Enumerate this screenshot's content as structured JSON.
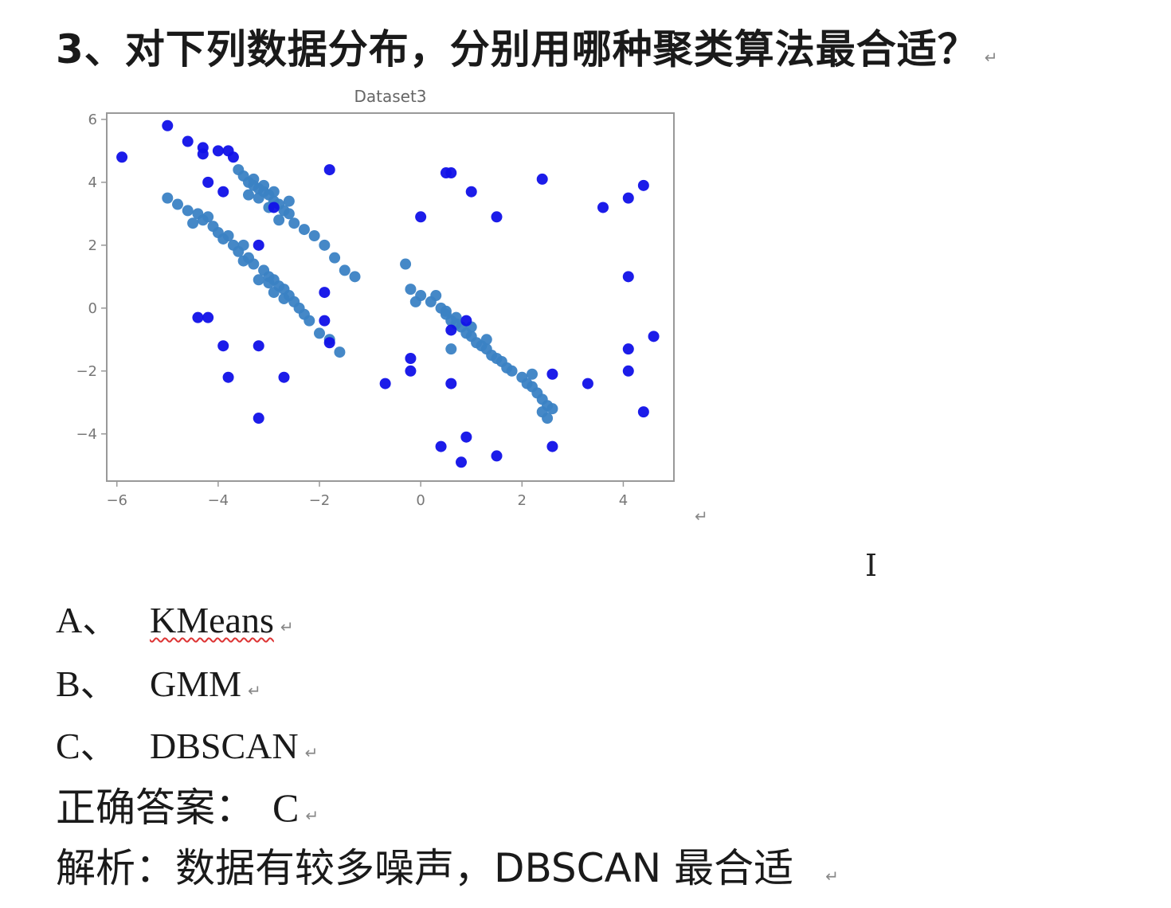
{
  "question": {
    "text": "3、对下列数据分布，分别用哪种聚类算法最合适？"
  },
  "paragraph_mark": "↵",
  "options": [
    {
      "label": "A、",
      "value": "KMeans"
    },
    {
      "label": "B、",
      "value": "GMM"
    },
    {
      "label": "C、",
      "value": "DBSCAN"
    }
  ],
  "answer": {
    "label": "正确答案：",
    "value": "C"
  },
  "explanation": {
    "label": "解析：",
    "text": "数据有较多噪声，DBSCAN 最合适"
  },
  "colors": {
    "core": "#3b82c4",
    "noise": "#1010e8",
    "axes": "#999999",
    "text": "#1a1a1a"
  },
  "chart_data": {
    "type": "scatter",
    "title": "Dataset3",
    "xlim": [
      -6.2,
      5.0
    ],
    "ylim": [
      -5.5,
      6.2
    ],
    "xticks": [
      -6,
      -4,
      -2,
      0,
      2,
      4
    ],
    "yticks": [
      6,
      4,
      2,
      0,
      -2,
      -4
    ],
    "grid": false,
    "series": [
      {
        "points": [
          [
            -3.6,
            4.4
          ],
          [
            -3.5,
            4.2
          ],
          [
            -3.4,
            4.0
          ],
          [
            -3.3,
            3.9
          ],
          [
            -3.2,
            3.8
          ],
          [
            -3.1,
            3.7
          ],
          [
            -3.0,
            3.6
          ],
          [
            -3.2,
            3.5
          ],
          [
            -2.9,
            3.4
          ],
          [
            -2.8,
            3.3
          ],
          [
            -3.0,
            3.2
          ],
          [
            -2.7,
            3.1
          ],
          [
            -2.6,
            3.0
          ],
          [
            -2.8,
            2.8
          ],
          [
            -2.5,
            2.7
          ],
          [
            -2.3,
            2.5
          ],
          [
            -2.1,
            2.3
          ],
          [
            -1.9,
            2.0
          ],
          [
            -1.7,
            1.6
          ],
          [
            -1.5,
            1.2
          ],
          [
            -1.3,
            1.0
          ],
          [
            -3.4,
            3.6
          ],
          [
            -3.1,
            3.9
          ],
          [
            -2.9,
            3.7
          ],
          [
            -2.6,
            3.4
          ],
          [
            -3.3,
            4.1
          ],
          [
            -5.0,
            3.5
          ],
          [
            -4.8,
            3.3
          ],
          [
            -4.6,
            3.1
          ],
          [
            -4.4,
            3.0
          ],
          [
            -4.3,
            2.8
          ],
          [
            -4.1,
            2.6
          ],
          [
            -4.0,
            2.4
          ],
          [
            -3.9,
            2.2
          ],
          [
            -3.7,
            2.0
          ],
          [
            -3.6,
            1.8
          ],
          [
            -3.4,
            1.6
          ],
          [
            -3.3,
            1.4
          ],
          [
            -3.1,
            1.2
          ],
          [
            -3.0,
            1.0
          ],
          [
            -2.9,
            0.9
          ],
          [
            -2.8,
            0.7
          ],
          [
            -2.7,
            0.6
          ],
          [
            -2.6,
            0.4
          ],
          [
            -2.5,
            0.2
          ],
          [
            -2.4,
            0.0
          ],
          [
            -2.3,
            -0.2
          ],
          [
            -2.2,
            -0.4
          ],
          [
            -2.0,
            -0.8
          ],
          [
            -1.8,
            -1.0
          ],
          [
            -1.6,
            -1.4
          ],
          [
            -4.2,
            2.9
          ],
          [
            -3.8,
            2.3
          ],
          [
            -3.5,
            1.5
          ],
          [
            -3.2,
            0.9
          ],
          [
            -2.9,
            0.5
          ],
          [
            -3.0,
            0.8
          ],
          [
            -2.7,
            0.3
          ],
          [
            -4.5,
            2.7
          ],
          [
            -3.5,
            2.0
          ],
          [
            -0.3,
            1.4
          ],
          [
            -0.2,
            0.6
          ],
          [
            0.0,
            0.4
          ],
          [
            0.2,
            0.2
          ],
          [
            0.3,
            0.4
          ],
          [
            0.4,
            0.0
          ],
          [
            0.5,
            -0.2
          ],
          [
            0.6,
            -0.4
          ],
          [
            0.7,
            -0.5
          ],
          [
            0.8,
            -0.6
          ],
          [
            0.9,
            -0.8
          ],
          [
            1.0,
            -0.9
          ],
          [
            1.1,
            -1.1
          ],
          [
            1.2,
            -1.2
          ],
          [
            1.3,
            -1.3
          ],
          [
            1.4,
            -1.5
          ],
          [
            1.5,
            -1.6
          ],
          [
            1.6,
            -1.7
          ],
          [
            1.7,
            -1.9
          ],
          [
            1.8,
            -2.0
          ],
          [
            2.0,
            -2.2
          ],
          [
            2.1,
            -2.4
          ],
          [
            2.2,
            -2.5
          ],
          [
            2.3,
            -2.7
          ],
          [
            2.4,
            -2.9
          ],
          [
            2.5,
            -3.1
          ],
          [
            2.6,
            -3.2
          ],
          [
            2.5,
            -3.5
          ],
          [
            2.4,
            -3.3
          ],
          [
            2.2,
            -2.1
          ],
          [
            0.5,
            -0.1
          ],
          [
            0.7,
            -0.3
          ],
          [
            1.0,
            -0.6
          ],
          [
            1.3,
            -1.0
          ],
          [
            -0.1,
            0.2
          ],
          [
            0.6,
            -1.3
          ]
        ]
      },
      {
        "points": [
          [
            -5.9,
            4.8
          ],
          [
            -5.0,
            5.8
          ],
          [
            -4.6,
            5.3
          ],
          [
            -4.3,
            5.1
          ],
          [
            -4.0,
            5.0
          ],
          [
            -3.8,
            5.0
          ],
          [
            -3.7,
            4.8
          ],
          [
            -4.2,
            4.0
          ],
          [
            -3.9,
            3.7
          ],
          [
            -4.3,
            4.9
          ],
          [
            -1.8,
            4.4
          ],
          [
            -2.9,
            3.2
          ],
          [
            -3.2,
            2.0
          ],
          [
            -1.9,
            0.5
          ],
          [
            -1.9,
            -0.4
          ],
          [
            -1.8,
            -1.1
          ],
          [
            -4.4,
            -0.3
          ],
          [
            -4.2,
            -0.3
          ],
          [
            -3.9,
            -1.2
          ],
          [
            -3.2,
            -1.2
          ],
          [
            -3.8,
            -2.2
          ],
          [
            -2.7,
            -2.2
          ],
          [
            -3.2,
            -3.5
          ],
          [
            -0.7,
            -2.4
          ],
          [
            -0.2,
            -1.6
          ],
          [
            -0.2,
            -2.0
          ],
          [
            0.5,
            4.3
          ],
          [
            0.6,
            4.3
          ],
          [
            1.0,
            3.7
          ],
          [
            1.5,
            2.9
          ],
          [
            0.0,
            2.9
          ],
          [
            0.6,
            -0.7
          ],
          [
            0.9,
            -0.4
          ],
          [
            0.6,
            -2.4
          ],
          [
            0.4,
            -4.4
          ],
          [
            0.9,
            -4.1
          ],
          [
            0.8,
            -4.9
          ],
          [
            1.5,
            -4.7
          ],
          [
            2.6,
            -2.1
          ],
          [
            2.6,
            -4.4
          ],
          [
            3.3,
            -2.4
          ],
          [
            2.4,
            4.1
          ],
          [
            3.6,
            3.2
          ],
          [
            4.1,
            3.5
          ],
          [
            4.4,
            3.9
          ],
          [
            4.1,
            1.0
          ],
          [
            4.1,
            -1.3
          ],
          [
            4.1,
            -2.0
          ],
          [
            4.4,
            -3.3
          ],
          [
            4.6,
            -0.9
          ]
        ]
      }
    ]
  }
}
